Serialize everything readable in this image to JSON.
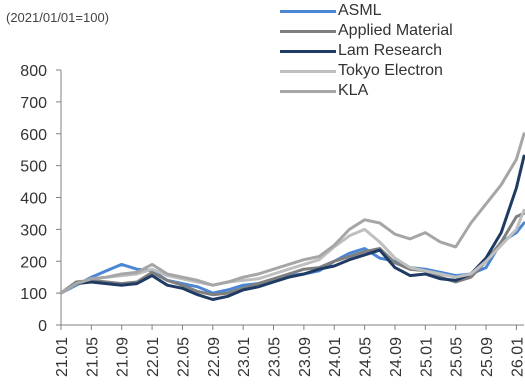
{
  "chart_data": {
    "type": "line",
    "subtitle": "(2021/01/01=100)",
    "x": [
      "21.01",
      "21.03",
      "21.05",
      "21.07",
      "21.09",
      "21.11",
      "22.01",
      "22.03",
      "22.05",
      "22.07",
      "22.09",
      "22.11",
      "23.01",
      "23.03",
      "23.05",
      "23.07",
      "23.09",
      "23.11",
      "24.01",
      "24.03",
      "24.05",
      "24.07",
      "24.09",
      "24.11",
      "25.01",
      "25.03",
      "25.05",
      "25.07",
      "25.09",
      "25.11",
      "26.01",
      "26.02"
    ],
    "x_tick_labels": [
      "21.01",
      "21.05",
      "21.09",
      "22.01",
      "22.05",
      "22.09",
      "23.01",
      "23.05",
      "23.09",
      "24.01",
      "24.05",
      "24.09",
      "25.01",
      "25.05",
      "25.09",
      "26.01"
    ],
    "ylim": [
      0,
      800
    ],
    "y_ticks": [
      0,
      100,
      200,
      300,
      400,
      500,
      600,
      700,
      800
    ],
    "legend_position": "top-right",
    "series": [
      {
        "name": "ASML",
        "color": "#4a86d4",
        "values": [
          100,
          125,
          150,
          170,
          190,
          175,
          170,
          140,
          130,
          120,
          100,
          110,
          125,
          130,
          140,
          155,
          160,
          170,
          200,
          225,
          240,
          210,
          200,
          180,
          175,
          165,
          155,
          160,
          180,
          260,
          290,
          320
        ]
      },
      {
        "name": "Applied Material",
        "color": "#7f7f7f",
        "values": [
          100,
          135,
          140,
          135,
          130,
          135,
          165,
          140,
          125,
          105,
          95,
          100,
          115,
          130,
          145,
          160,
          175,
          180,
          200,
          215,
          230,
          240,
          195,
          175,
          170,
          150,
          135,
          150,
          200,
          260,
          340,
          350
        ]
      },
      {
        "name": "Lam Research",
        "color": "#1f3b63",
        "values": [
          100,
          130,
          135,
          130,
          125,
          130,
          155,
          125,
          115,
          95,
          80,
          90,
          110,
          120,
          135,
          150,
          160,
          175,
          185,
          205,
          220,
          235,
          180,
          155,
          160,
          145,
          140,
          160,
          210,
          290,
          430,
          530
        ]
      },
      {
        "name": "Tokyo Electron",
        "color": "#bfbfbf",
        "values": [
          100,
          130,
          145,
          150,
          155,
          160,
          175,
          155,
          145,
          135,
          125,
          135,
          140,
          145,
          160,
          175,
          190,
          205,
          245,
          280,
          300,
          260,
          210,
          180,
          170,
          160,
          150,
          160,
          200,
          250,
          300,
          360
        ]
      },
      {
        "name": "KLA",
        "color": "#a6a6a6",
        "values": [
          100,
          130,
          145,
          150,
          160,
          165,
          190,
          160,
          150,
          140,
          125,
          135,
          150,
          160,
          175,
          190,
          205,
          215,
          250,
          300,
          330,
          320,
          285,
          270,
          290,
          260,
          245,
          320,
          380,
          440,
          520,
          600
        ]
      }
    ]
  }
}
